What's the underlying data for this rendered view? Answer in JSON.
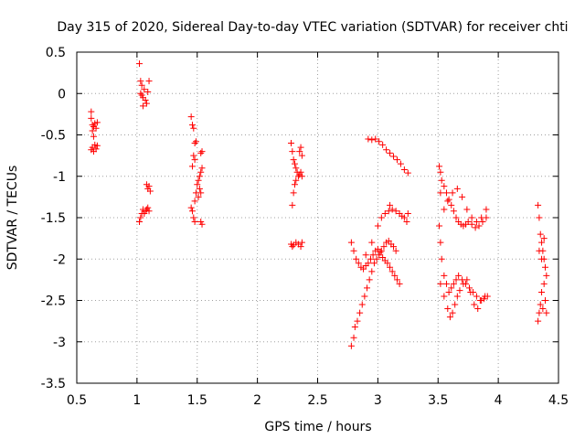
{
  "chart_data": {
    "type": "scatter",
    "title": "Day 315 of 2020, Sidereal Day-to-day VTEC variation (SDTVAR) for receiver chti",
    "xlabel": "GPS time / hours",
    "ylabel": "SDTVAR / TECUs",
    "xlim": [
      0.5,
      4.5
    ],
    "ylim": [
      -3.5,
      0.5
    ],
    "xticks": [
      "0.5",
      "1",
      "1.5",
      "2",
      "2.5",
      "3",
      "3.5",
      "4",
      "4.5"
    ],
    "yticks": [
      "0.5",
      "0",
      "-0.5",
      "-1",
      "-1.5",
      "-2",
      "-2.5",
      "-3",
      "-3.5"
    ],
    "grid": true,
    "marker": "+",
    "marker_color": "#ff0000",
    "series": [
      {
        "name": "SDTVAR",
        "points": [
          [
            0.62,
            -0.22
          ],
          [
            0.62,
            -0.3
          ],
          [
            0.63,
            -0.38
          ],
          [
            0.63,
            -0.45
          ],
          [
            0.64,
            -0.4
          ],
          [
            0.65,
            -0.36
          ],
          [
            0.66,
            -0.42
          ],
          [
            0.67,
            -0.35
          ],
          [
            0.64,
            -0.52
          ],
          [
            0.62,
            -0.68
          ],
          [
            0.63,
            -0.65
          ],
          [
            0.64,
            -0.7
          ],
          [
            0.65,
            -0.62
          ],
          [
            0.66,
            -0.67
          ],
          [
            0.67,
            -0.63
          ],
          [
            1.02,
            0.36
          ],
          [
            1.03,
            0.15
          ],
          [
            1.04,
            0.1
          ],
          [
            1.03,
            0.0
          ],
          [
            1.04,
            -0.02
          ],
          [
            1.05,
            -0.05
          ],
          [
            1.06,
            0.05
          ],
          [
            1.07,
            -0.08
          ],
          [
            1.08,
            -0.12
          ],
          [
            1.09,
            0.02
          ],
          [
            1.1,
            0.15
          ],
          [
            1.05,
            -0.15
          ],
          [
            1.02,
            -1.55
          ],
          [
            1.03,
            -1.5
          ],
          [
            1.04,
            -1.45
          ],
          [
            1.05,
            -1.4
          ],
          [
            1.06,
            -1.45
          ],
          [
            1.07,
            -1.42
          ],
          [
            1.08,
            -1.4
          ],
          [
            1.09,
            -1.38
          ],
          [
            1.1,
            -1.42
          ],
          [
            1.08,
            -1.1
          ],
          [
            1.09,
            -1.15
          ],
          [
            1.1,
            -1.12
          ],
          [
            1.11,
            -1.18
          ],
          [
            1.45,
            -0.28
          ],
          [
            1.46,
            -0.38
          ],
          [
            1.47,
            -0.42
          ],
          [
            1.48,
            -0.6
          ],
          [
            1.49,
            -0.58
          ],
          [
            1.47,
            -0.75
          ],
          [
            1.46,
            -0.88
          ],
          [
            1.48,
            -0.8
          ],
          [
            1.45,
            -1.38
          ],
          [
            1.46,
            -1.42
          ],
          [
            1.47,
            -1.5
          ],
          [
            1.48,
            -1.55
          ],
          [
            1.48,
            -1.3
          ],
          [
            1.49,
            -1.2
          ],
          [
            1.5,
            -1.1
          ],
          [
            1.51,
            -1.05
          ],
          [
            1.52,
            -1.0
          ],
          [
            1.53,
            -0.95
          ],
          [
            1.54,
            -0.9
          ],
          [
            1.51,
            -1.25
          ],
          [
            1.52,
            -1.15
          ],
          [
            1.53,
            -1.2
          ],
          [
            1.53,
            -0.72
          ],
          [
            1.54,
            -0.7
          ],
          [
            1.53,
            -1.55
          ],
          [
            1.54,
            -1.58
          ],
          [
            2.28,
            -0.6
          ],
          [
            2.29,
            -0.7
          ],
          [
            2.3,
            -0.8
          ],
          [
            2.31,
            -0.85
          ],
          [
            2.32,
            -0.9
          ],
          [
            2.33,
            -0.95
          ],
          [
            2.34,
            -1.0
          ],
          [
            2.35,
            -0.98
          ],
          [
            2.36,
            -0.95
          ],
          [
            2.37,
            -1.0
          ],
          [
            2.35,
            -0.7
          ],
          [
            2.36,
            -0.65
          ],
          [
            2.37,
            -0.75
          ],
          [
            2.29,
            -1.35
          ],
          [
            2.3,
            -1.2
          ],
          [
            2.31,
            -1.1
          ],
          [
            2.32,
            -1.05
          ],
          [
            2.28,
            -1.82
          ],
          [
            2.29,
            -1.85
          ],
          [
            2.3,
            -1.83
          ],
          [
            2.32,
            -1.8
          ],
          [
            2.34,
            -1.82
          ],
          [
            2.36,
            -1.85
          ],
          [
            2.37,
            -1.8
          ],
          [
            2.78,
            -3.05
          ],
          [
            2.8,
            -2.95
          ],
          [
            2.81,
            -2.82
          ],
          [
            2.83,
            -2.75
          ],
          [
            2.85,
            -2.65
          ],
          [
            2.87,
            -2.55
          ],
          [
            2.89,
            -2.45
          ],
          [
            2.91,
            -2.35
          ],
          [
            2.93,
            -2.25
          ],
          [
            2.95,
            -2.15
          ],
          [
            2.97,
            -2.05
          ],
          [
            2.99,
            -2.0
          ],
          [
            3.01,
            -1.95
          ],
          [
            3.03,
            -1.9
          ],
          [
            3.05,
            -1.85
          ],
          [
            3.07,
            -1.8
          ],
          [
            3.09,
            -1.78
          ],
          [
            3.11,
            -1.82
          ],
          [
            3.13,
            -1.85
          ],
          [
            3.15,
            -1.9
          ],
          [
            2.78,
            -1.8
          ],
          [
            2.8,
            -1.9
          ],
          [
            2.82,
            -2.0
          ],
          [
            2.84,
            -2.05
          ],
          [
            2.86,
            -2.1
          ],
          [
            2.88,
            -2.12
          ],
          [
            2.9,
            -2.08
          ],
          [
            2.92,
            -2.05
          ],
          [
            2.94,
            -2.0
          ],
          [
            2.96,
            -1.95
          ],
          [
            2.98,
            -1.9
          ],
          [
            3.0,
            -1.88
          ],
          [
            3.02,
            -1.92
          ],
          [
            3.04,
            -1.98
          ],
          [
            3.06,
            -2.02
          ],
          [
            3.08,
            -2.05
          ],
          [
            3.1,
            -2.1
          ],
          [
            3.12,
            -2.15
          ],
          [
            3.14,
            -2.2
          ],
          [
            3.16,
            -2.25
          ],
          [
            3.18,
            -2.3
          ],
          [
            2.9,
            -1.95
          ],
          [
            2.95,
            -1.8
          ],
          [
            3.0,
            -1.6
          ],
          [
            3.03,
            -1.5
          ],
          [
            3.06,
            -1.45
          ],
          [
            3.09,
            -1.42
          ],
          [
            3.12,
            -1.4
          ],
          [
            3.15,
            -1.42
          ],
          [
            3.18,
            -1.45
          ],
          [
            3.2,
            -1.48
          ],
          [
            3.22,
            -1.5
          ],
          [
            3.24,
            -1.55
          ],
          [
            3.25,
            -1.45
          ],
          [
            3.1,
            -1.35
          ],
          [
            2.92,
            -0.55
          ],
          [
            2.95,
            -0.56
          ],
          [
            2.98,
            -0.55
          ],
          [
            3.01,
            -0.58
          ],
          [
            3.04,
            -0.62
          ],
          [
            3.07,
            -0.68
          ],
          [
            3.1,
            -0.72
          ],
          [
            3.13,
            -0.76
          ],
          [
            3.16,
            -0.8
          ],
          [
            3.19,
            -0.85
          ],
          [
            3.22,
            -0.92
          ],
          [
            3.25,
            -0.96
          ],
          [
            3.51,
            -0.88
          ],
          [
            3.52,
            -0.95
          ],
          [
            3.53,
            -1.05
          ],
          [
            3.55,
            -1.12
          ],
          [
            3.57,
            -1.2
          ],
          [
            3.59,
            -1.28
          ],
          [
            3.61,
            -1.35
          ],
          [
            3.63,
            -1.42
          ],
          [
            3.65,
            -1.5
          ],
          [
            3.67,
            -1.55
          ],
          [
            3.69,
            -1.58
          ],
          [
            3.71,
            -1.6
          ],
          [
            3.73,
            -1.58
          ],
          [
            3.75,
            -1.55
          ],
          [
            3.78,
            -1.58
          ],
          [
            3.81,
            -1.62
          ],
          [
            3.84,
            -1.6
          ],
          [
            3.87,
            -1.55
          ],
          [
            3.9,
            -1.5
          ],
          [
            3.51,
            -1.6
          ],
          [
            3.52,
            -1.8
          ],
          [
            3.53,
            -2.0
          ],
          [
            3.55,
            -2.2
          ],
          [
            3.57,
            -2.3
          ],
          [
            3.59,
            -2.4
          ],
          [
            3.61,
            -2.35
          ],
          [
            3.63,
            -2.3
          ],
          [
            3.65,
            -2.25
          ],
          [
            3.67,
            -2.2
          ],
          [
            3.7,
            -2.25
          ],
          [
            3.73,
            -2.3
          ],
          [
            3.76,
            -2.35
          ],
          [
            3.79,
            -2.4
          ],
          [
            3.82,
            -2.45
          ],
          [
            3.85,
            -2.5
          ],
          [
            3.88,
            -2.48
          ],
          [
            3.91,
            -2.45
          ],
          [
            3.52,
            -2.3
          ],
          [
            3.55,
            -2.45
          ],
          [
            3.58,
            -2.6
          ],
          [
            3.6,
            -2.7
          ],
          [
            3.62,
            -2.65
          ],
          [
            3.64,
            -2.55
          ],
          [
            3.66,
            -2.45
          ],
          [
            3.68,
            -2.38
          ],
          [
            3.71,
            -2.3
          ],
          [
            3.74,
            -2.25
          ],
          [
            3.77,
            -2.4
          ],
          [
            3.8,
            -2.55
          ],
          [
            3.83,
            -2.6
          ],
          [
            3.86,
            -2.5
          ],
          [
            3.89,
            -2.45
          ],
          [
            3.52,
            -1.2
          ],
          [
            3.55,
            -1.4
          ],
          [
            3.58,
            -1.3
          ],
          [
            3.62,
            -1.2
          ],
          [
            3.66,
            -1.15
          ],
          [
            3.7,
            -1.25
          ],
          [
            3.74,
            -1.4
          ],
          [
            3.78,
            -1.5
          ],
          [
            3.82,
            -1.55
          ],
          [
            3.86,
            -1.5
          ],
          [
            3.9,
            -1.4
          ],
          [
            4.33,
            -1.35
          ],
          [
            4.34,
            -1.5
          ],
          [
            4.35,
            -1.7
          ],
          [
            4.36,
            -1.8
          ],
          [
            4.37,
            -1.9
          ],
          [
            4.38,
            -2.0
          ],
          [
            4.39,
            -2.1
          ],
          [
            4.4,
            -2.2
          ],
          [
            4.38,
            -2.3
          ],
          [
            4.36,
            -2.4
          ],
          [
            4.35,
            -2.55
          ],
          [
            4.34,
            -2.65
          ],
          [
            4.33,
            -2.75
          ],
          [
            4.37,
            -2.6
          ],
          [
            4.39,
            -2.5
          ],
          [
            4.4,
            -2.65
          ],
          [
            4.34,
            -1.9
          ],
          [
            4.36,
            -2.0
          ],
          [
            4.38,
            -1.75
          ]
        ]
      }
    ]
  }
}
